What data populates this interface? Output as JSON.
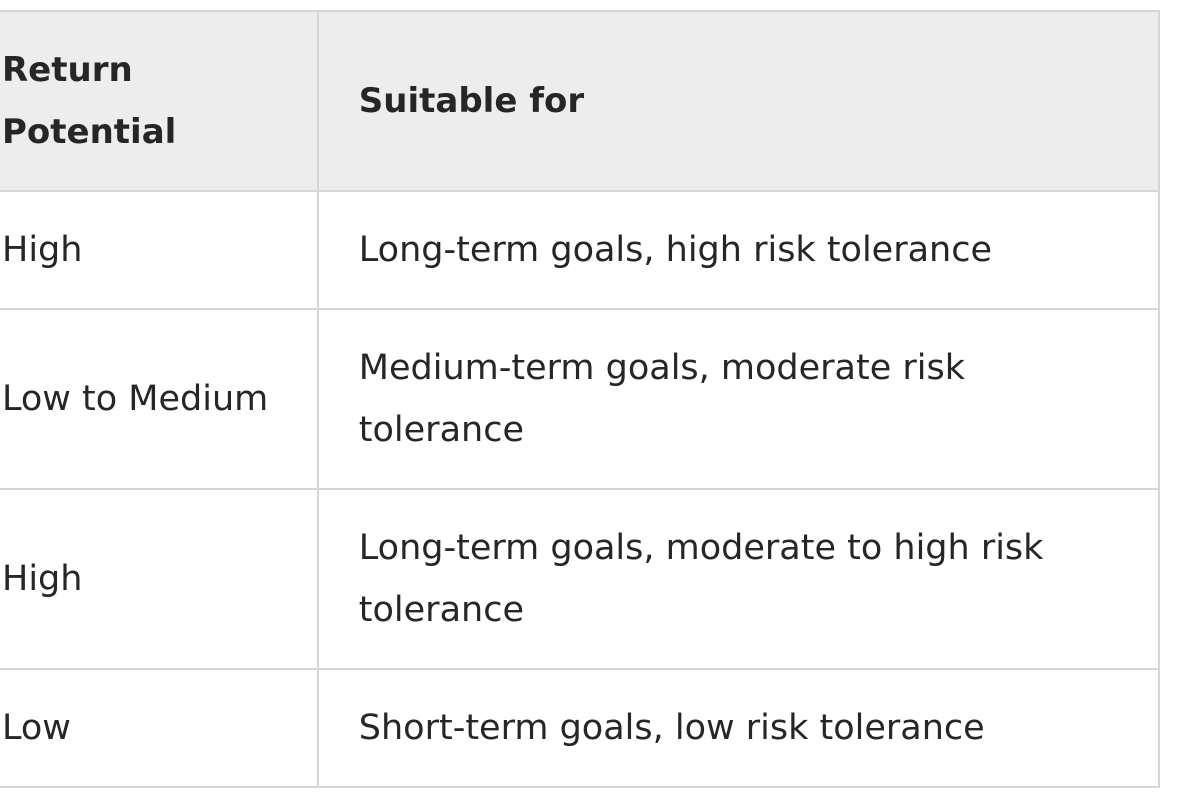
{
  "table": {
    "headers": {
      "return_potential": "Return Potential",
      "suitable_for": "Suitable for"
    },
    "rows": [
      {
        "return_potential": "High",
        "suitable_for": "Long-term goals, high risk tolerance"
      },
      {
        "return_potential": "Low to Medium",
        "suitable_for": "Medium-term goals, moderate risk tolerance"
      },
      {
        "return_potential": "High",
        "suitable_for": "Long-term goals, moderate to high risk tolerance"
      },
      {
        "return_potential": "Low",
        "suitable_for": "Short-term goals, low risk tolerance"
      }
    ]
  },
  "colors": {
    "header_bg": "#ededed",
    "border": "#d6d6d6",
    "text": "#262626",
    "body_bg": "#ffffff"
  }
}
